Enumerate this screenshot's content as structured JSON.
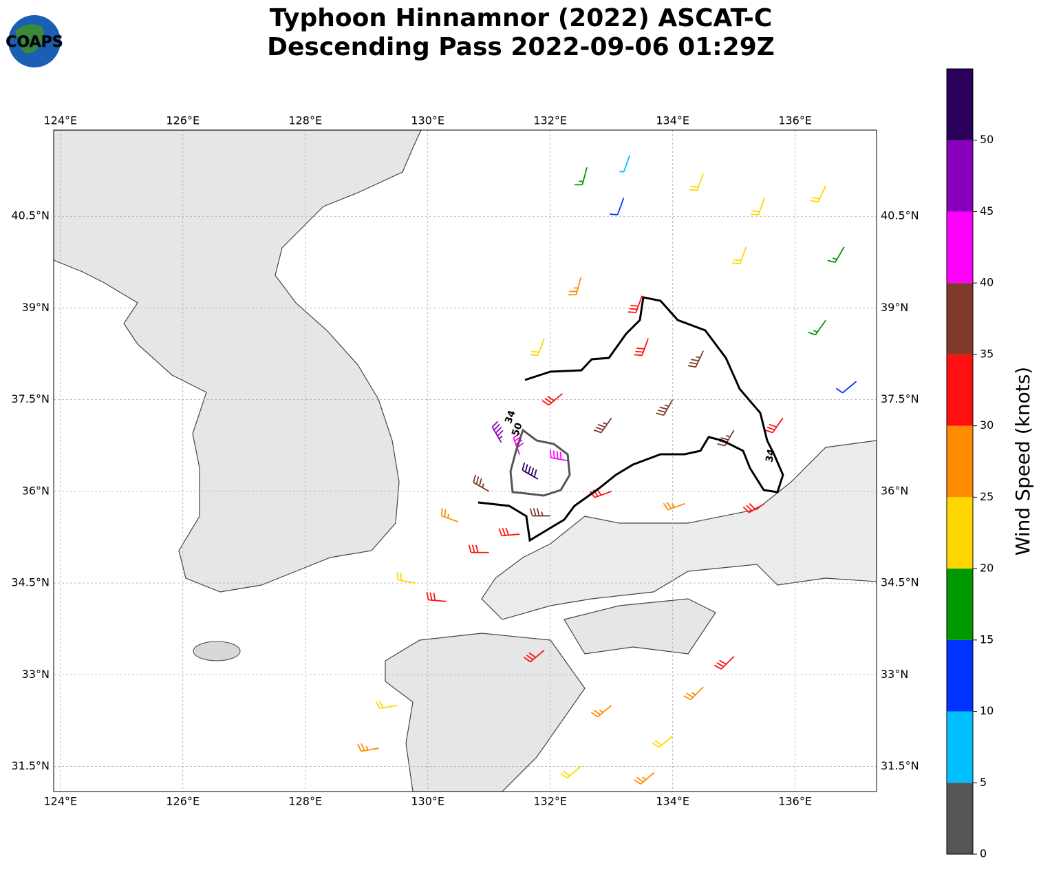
{
  "logo": "COAPS",
  "title": [
    "Typhoon Hinnamnor (2022) ASCAT-C",
    "Descending Pass 2022-09-06 01:29Z"
  ],
  "map": {
    "xlim": [
      123.89,
      137.33
    ],
    "ylim": [
      31.09,
      41.91
    ],
    "xticks": [
      {
        "value": 124,
        "label": "124°E"
      },
      {
        "value": 126,
        "label": "126°E"
      },
      {
        "value": 128,
        "label": "128°E"
      },
      {
        "value": 130,
        "label": "130°E"
      },
      {
        "value": 132,
        "label": "132°E"
      },
      {
        "value": 134,
        "label": "134°E"
      },
      {
        "value": 136,
        "label": "136°E"
      }
    ],
    "yticks": [
      {
        "value": 31.5,
        "label": "31.5°N"
      },
      {
        "value": 33,
        "label": "33°N"
      },
      {
        "value": 34.5,
        "label": "34.5°N"
      },
      {
        "value": 36,
        "label": "36°N"
      },
      {
        "value": 37.5,
        "label": "37.5°N"
      },
      {
        "value": 39,
        "label": "39°N"
      },
      {
        "value": 40.5,
        "label": "40.5°N"
      }
    ],
    "contours": [
      {
        "level": 34
      },
      {
        "level": 50
      }
    ],
    "barbs": [
      [
        134.5,
        41.2,
        22,
        200
      ],
      [
        135.5,
        40.8,
        22,
        200
      ],
      [
        136.5,
        41.0,
        22,
        205
      ],
      [
        135.2,
        40.0,
        22,
        200
      ],
      [
        136.8,
        40.0,
        17,
        210
      ],
      [
        136.5,
        38.8,
        17,
        215
      ],
      [
        137.0,
        37.8,
        12,
        230
      ],
      [
        133.2,
        40.8,
        12,
        200
      ],
      [
        133.3,
        41.5,
        8,
        200
      ],
      [
        132.6,
        41.3,
        17,
        195
      ],
      [
        132.5,
        39.5,
        27,
        195
      ],
      [
        131.9,
        38.5,
        22,
        200
      ],
      [
        133.5,
        39.2,
        32,
        200
      ],
      [
        133.6,
        38.5,
        32,
        200
      ],
      [
        134.5,
        38.3,
        37,
        205
      ],
      [
        134.0,
        37.5,
        37,
        210
      ],
      [
        133.0,
        37.2,
        37,
        215
      ],
      [
        135.0,
        37.0,
        37,
        210
      ],
      [
        135.8,
        37.2,
        32,
        215
      ],
      [
        132.2,
        37.6,
        32,
        230
      ],
      [
        131.5,
        36.6,
        42,
        340
      ],
      [
        131.8,
        36.2,
        52,
        300
      ],
      [
        131.2,
        36.8,
        48,
        330
      ],
      [
        132.3,
        36.5,
        42,
        280
      ],
      [
        131.0,
        36.0,
        37,
        300
      ],
      [
        132.0,
        35.6,
        37,
        270
      ],
      [
        133.0,
        36.0,
        32,
        250
      ],
      [
        134.2,
        35.8,
        27,
        250
      ],
      [
        135.5,
        35.8,
        32,
        240
      ],
      [
        130.5,
        35.5,
        27,
        290
      ],
      [
        129.8,
        34.5,
        22,
        280
      ],
      [
        130.3,
        34.2,
        30,
        275
      ],
      [
        131.0,
        35.0,
        32,
        270
      ],
      [
        131.5,
        35.3,
        32,
        265
      ],
      [
        133.0,
        32.5,
        27,
        230
      ],
      [
        134.0,
        32.0,
        23,
        230
      ],
      [
        132.5,
        31.5,
        22,
        230
      ],
      [
        129.2,
        31.8,
        27,
        260
      ],
      [
        129.5,
        32.5,
        22,
        260
      ],
      [
        135.0,
        33.3,
        30,
        225
      ],
      [
        134.5,
        32.8,
        27,
        225
      ],
      [
        133.7,
        31.4,
        27,
        230
      ],
      [
        131.9,
        33.4,
        32,
        230
      ]
    ]
  },
  "colorbar": {
    "label": "Wind Speed (knots)",
    "lim": [
      0,
      55
    ],
    "bounds": [
      0,
      5,
      10,
      15,
      20,
      25,
      30,
      35,
      40,
      45,
      50,
      55
    ],
    "colors": [
      "#555555",
      "#00bfff",
      "#0033ff",
      "#009900",
      "#ffd700",
      "#ff8c00",
      "#ff1010",
      "#7f3a2a",
      "#ff00ff",
      "#8800bb",
      "#2b005a"
    ],
    "ticks": [
      0,
      5,
      10,
      15,
      20,
      25,
      30,
      35,
      40,
      45,
      50
    ]
  }
}
